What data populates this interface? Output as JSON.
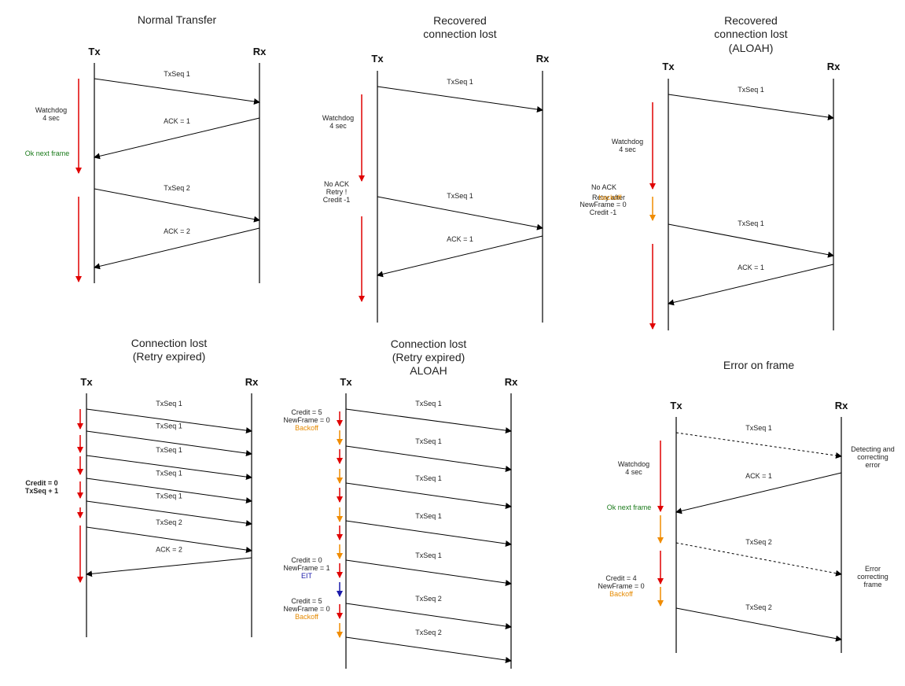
{
  "colors": {
    "red": "#e00000",
    "orange": "#f08c00",
    "blue": "#1a1aaa",
    "green": "#1a7a1a"
  },
  "diagrams": [
    {
      "id": "normal",
      "title_lines": [
        "Normal Transfer"
      ],
      "tx": "Tx",
      "rx": "Rx",
      "messages": [
        {
          "label": "TxSeq 1",
          "dir": "tx-rx"
        },
        {
          "label": "ACK = 1",
          "dir": "rx-tx"
        },
        {
          "label": "TxSeq 2",
          "dir": "tx-rx"
        },
        {
          "label": "ACK = 2",
          "dir": "rx-tx"
        }
      ],
      "notes": [
        {
          "lines": [
            "Watchdog",
            "4 sec"
          ],
          "color": "default"
        },
        {
          "lines": [
            "Ok next frame"
          ],
          "color": "green"
        }
      ],
      "timers": [
        "red",
        "red"
      ]
    },
    {
      "id": "recovered",
      "title_lines": [
        "Recovered",
        "connection lost"
      ],
      "tx": "Tx",
      "rx": "Rx",
      "messages": [
        {
          "label": "TxSeq 1",
          "dir": "tx-rx"
        },
        {
          "label": "TxSeq 1",
          "dir": "tx-rx"
        },
        {
          "label": "ACK = 1",
          "dir": "rx-tx"
        }
      ],
      "notes": [
        {
          "lines": [
            "Watchdog",
            "4 sec"
          ],
          "color": "default"
        },
        {
          "lines": [
            "No ACK",
            "Retry !",
            "Credit -1"
          ],
          "color": "default"
        }
      ],
      "timers": [
        "red",
        "red"
      ]
    },
    {
      "id": "recovered-aloah",
      "title_lines": [
        "Recovered",
        "connection lost",
        "(ALOAH)"
      ],
      "tx": "Tx",
      "rx": "Rx",
      "messages": [
        {
          "label": "TxSeq 1",
          "dir": "tx-rx"
        },
        {
          "label": "TxSeq 1",
          "dir": "tx-rx"
        },
        {
          "label": "ACK = 1",
          "dir": "rx-tx"
        }
      ],
      "notes": [
        {
          "lines": [
            "Watchdog",
            "4 sec"
          ],
          "color": "default"
        },
        {
          "lines": [
            "No ACK"
          ],
          "color": "default"
        },
        {
          "lines": [
            "Retry after"
          ],
          "color": "default",
          "suffix": "backoff"
        },
        {
          "lines": [
            "NewFrame = 0",
            "Credit -1"
          ],
          "color": "default"
        }
      ],
      "timers": [
        "red",
        "orange",
        "red"
      ]
    },
    {
      "id": "lost",
      "title_lines": [
        "Connection lost",
        "(Retry expired)"
      ],
      "tx": "Tx",
      "rx": "Rx",
      "messages": [
        {
          "label": "TxSeq 1",
          "dir": "tx-rx"
        },
        {
          "label": "TxSeq 1",
          "dir": "tx-rx"
        },
        {
          "label": "TxSeq 1",
          "dir": "tx-rx"
        },
        {
          "label": "TxSeq 1",
          "dir": "tx-rx"
        },
        {
          "label": "TxSeq 1",
          "dir": "tx-rx"
        },
        {
          "label": "TxSeq 2",
          "dir": "tx-rx"
        },
        {
          "label": "ACK = 2",
          "dir": "rx-tx"
        }
      ],
      "notes": [
        {
          "lines": [
            "Credit = 0",
            "TxSeq + 1"
          ],
          "color": "bold"
        }
      ],
      "timers": [
        "red",
        "red",
        "red",
        "red",
        "red",
        "red"
      ]
    },
    {
      "id": "lost-aloah",
      "title_lines": [
        "Connection lost",
        "(Retry expired)",
        "ALOAH"
      ],
      "tx": "Tx",
      "rx": "Rx",
      "messages": [
        {
          "label": "TxSeq 1",
          "dir": "tx-rx"
        },
        {
          "label": "TxSeq 1",
          "dir": "tx-rx"
        },
        {
          "label": "TxSeq 1",
          "dir": "tx-rx"
        },
        {
          "label": "TxSeq 1",
          "dir": "tx-rx"
        },
        {
          "label": "TxSeq 1",
          "dir": "tx-rx"
        },
        {
          "label": "TxSeq 2",
          "dir": "tx-rx"
        },
        {
          "label": "TxSeq 2",
          "dir": "tx-rx"
        }
      ],
      "notes": [
        {
          "lines": [
            "Credit = 5",
            "NewFrame = 0"
          ],
          "color": "default",
          "tail": "Backoff",
          "tail_color": "orange"
        },
        {
          "lines": [
            "Credit = 0",
            "NewFrame = 1"
          ],
          "color": "default",
          "tail": "EIT",
          "tail_color": "blue"
        },
        {
          "lines": [
            "Credit = 5",
            "NewFrame = 0"
          ],
          "color": "default",
          "tail": "Backoff",
          "tail_color": "orange"
        }
      ],
      "timers": [
        "red",
        "orange",
        "red",
        "orange",
        "red",
        "orange",
        "red",
        "orange",
        "red",
        "orange",
        "red",
        "blue",
        "red",
        "orange"
      ]
    },
    {
      "id": "error",
      "title_lines": [
        "Error on frame"
      ],
      "tx": "Tx",
      "rx": "Rx",
      "messages": [
        {
          "label": "TxSeq 1",
          "dir": "tx-rx",
          "dashed": true
        },
        {
          "label": "ACK = 1",
          "dir": "rx-tx"
        },
        {
          "label": "TxSeq 2",
          "dir": "tx-rx",
          "dashed": true
        },
        {
          "label": "TxSeq 2",
          "dir": "tx-rx"
        }
      ],
      "notes": [
        {
          "lines": [
            "Watchdog",
            "4 sec"
          ],
          "color": "default"
        },
        {
          "lines": [
            "Ok next frame"
          ],
          "color": "green"
        },
        {
          "lines": [
            "Credit = 4",
            "NewFrame = 0"
          ],
          "color": "default",
          "tail": "Backoff",
          "tail_color": "orange"
        },
        {
          "lines": [
            "Detecting and",
            "correcting",
            "error"
          ],
          "color": "default"
        },
        {
          "lines": [
            "Error",
            "correcting",
            "frame"
          ],
          "color": "default"
        }
      ],
      "timers": [
        "red",
        "orange",
        "red",
        "orange"
      ]
    }
  ]
}
